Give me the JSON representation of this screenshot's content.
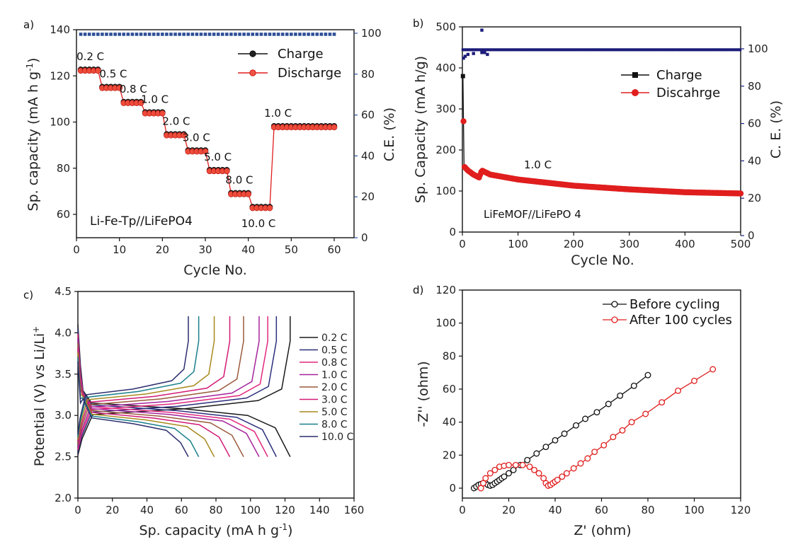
{
  "chart_data": [
    {
      "panel": "a)",
      "type": "line",
      "xlabel": "Cycle No.",
      "ylabel": "Sp. capacity (mA  h g-1)",
      "y2label": "C.E. (%)",
      "xlim": [
        0,
        65
      ],
      "ylim": [
        55,
        140
      ],
      "y2lim": [
        0,
        102
      ],
      "xticks": [
        "0",
        "10",
        "20",
        "30",
        "40",
        "50",
        "60"
      ],
      "yticks": [
        "60",
        "80",
        "100",
        "120",
        "140"
      ],
      "y2ticks": [
        "0",
        "20",
        "40",
        "60",
        "80",
        "100"
      ],
      "y2_color": "#2e4f97",
      "legend": [
        {
          "label": "Charge",
          "color": "#111111"
        },
        {
          "label": "Discharge",
          "color": "#e01e1e"
        }
      ],
      "sample_label": "Li-Fe-Tp//LiFePO4",
      "rate_segments": [
        {
          "rate": "0.2 C",
          "start": 1,
          "end": 5,
          "capacity": 122.5
        },
        {
          "rate": "0.5 C",
          "start": 6,
          "end": 10,
          "capacity": 115
        },
        {
          "rate": "0.8 C",
          "start": 11,
          "end": 15,
          "capacity": 108.5
        },
        {
          "rate": "1.0 C",
          "start": 16,
          "end": 20,
          "capacity": 104
        },
        {
          "rate": "2.0 C",
          "start": 21,
          "end": 25,
          "capacity": 94.5
        },
        {
          "rate": "3.0 C",
          "start": 26,
          "end": 30,
          "capacity": 87.5
        },
        {
          "rate": "5.0 C",
          "start": 31,
          "end": 35,
          "capacity": 79
        },
        {
          "rate": "8.0 C",
          "start": 36,
          "end": 40,
          "capacity": 69
        },
        {
          "rate": "10.0 C",
          "start": 41,
          "end": 45,
          "capacity": 63
        },
        {
          "rate": "1.0 C",
          "start": 46,
          "end": 60,
          "capacity": 98
        }
      ],
      "ce": {
        "cycles": [
          1,
          60
        ],
        "value": 99.5
      }
    },
    {
      "panel": "b)",
      "type": "line",
      "xlabel": "Cycle No.",
      "ylabel": "Sp. Capacity (mA h/g)",
      "y2label": "C. E. (%)",
      "xlim": [
        0,
        500
      ],
      "ylim": [
        0,
        500
      ],
      "y2lim": [
        0,
        110
      ],
      "xticks": [
        "0",
        "100",
        "200",
        "300",
        "400",
        "500"
      ],
      "yticks": [
        "0",
        "100",
        "200",
        "300",
        "400",
        "500"
      ],
      "y2ticks": [
        "0",
        "20",
        "40",
        "60",
        "80",
        "100"
      ],
      "y2_color": "#1c1c7a",
      "legend": [
        {
          "label": "Charge",
          "color": "#111111"
        },
        {
          "label": "Discahrge",
          "color": "#e01e1e"
        }
      ],
      "rate_label": "1.0 C",
      "sample_label": "LiFeMOF//LiFePO 4",
      "capacity_points": [
        [
          1,
          380
        ],
        [
          3,
          160
        ],
        [
          10,
          150
        ],
        [
          20,
          140
        ],
        [
          30,
          133
        ],
        [
          35,
          150
        ],
        [
          50,
          140
        ],
        [
          100,
          128
        ],
        [
          200,
          113
        ],
        [
          300,
          104
        ],
        [
          400,
          97
        ],
        [
          500,
          94
        ]
      ],
      "ce": {
        "value": 99.5,
        "early_points": [
          [
            2,
            95
          ],
          [
            5,
            96
          ],
          [
            10,
            97
          ],
          [
            20,
            97.5
          ],
          [
            35,
            98
          ],
          [
            40,
            98
          ],
          [
            35,
            110
          ],
          [
            45,
            97
          ]
        ]
      }
    },
    {
      "panel": "c)",
      "type": "line",
      "xlabel": "Sp. capacity (mA h g-1)",
      "ylabel": "Potential (V) vs Li/Li+",
      "xlim": [
        0,
        160
      ],
      "ylim": [
        2.0,
        4.5
      ],
      "xticks": [
        "0",
        "20",
        "40",
        "60",
        "80",
        "100",
        "120",
        "140",
        "160"
      ],
      "yticks": [
        "2.0",
        "2.5",
        "3.0",
        "3.5",
        "4.0",
        "4.5"
      ],
      "series": [
        {
          "name": "0.2 C",
          "color": "#1a1a1a",
          "capacity": 123
        },
        {
          "name": "0.5 C",
          "color": "#2b2f7c",
          "capacity": 115
        },
        {
          "name": "0.8 C",
          "color": "#e2277e",
          "capacity": 110
        },
        {
          "name": "1.0 C",
          "color": "#a5239c",
          "capacity": 105
        },
        {
          "name": "2.0 C",
          "color": "#9a5a3c",
          "capacity": 96
        },
        {
          "name": "3.0 C",
          "color": "#d11a74",
          "capacity": 88
        },
        {
          "name": "5.0 C",
          "color": "#a8891e",
          "capacity": 79
        },
        {
          "name": "8.0 C",
          "color": "#197f8a",
          "capacity": 70
        },
        {
          "name": "10.0 C",
          "color": "#2c2e6e",
          "capacity": 64
        }
      ]
    },
    {
      "panel": "d)",
      "type": "scatter",
      "xlabel": "Z' (ohm)",
      "ylabel": "-Z'' (ohm)",
      "xlim": [
        0,
        120
      ],
      "ylim": [
        -5,
        120
      ],
      "xticks": [
        "0",
        "20",
        "40",
        "60",
        "80",
        "100",
        "120"
      ],
      "yticks": [
        "0",
        "20",
        "40",
        "60",
        "80",
        "100",
        "120"
      ],
      "series": [
        {
          "name": "Before cycling",
          "color": "#111111",
          "points": [
            [
              5,
              0
            ],
            [
              6,
              1
            ],
            [
              7,
              2
            ],
            [
              8,
              2.5
            ],
            [
              9,
              3
            ],
            [
              10,
              3
            ],
            [
              11,
              2
            ],
            [
              12,
              1.5
            ],
            [
              13,
              2
            ],
            [
              14,
              3
            ],
            [
              15,
              4
            ],
            [
              16,
              5
            ],
            [
              17,
              6
            ],
            [
              18,
              7
            ],
            [
              20,
              9
            ],
            [
              22,
              11
            ],
            [
              25,
              14
            ],
            [
              28,
              17
            ],
            [
              32,
              21
            ],
            [
              36,
              25
            ],
            [
              40,
              29
            ],
            [
              44,
              33
            ],
            [
              49,
              38
            ],
            [
              53,
              42
            ],
            [
              58,
              46
            ],
            [
              63,
              51
            ],
            [
              68,
              56
            ],
            [
              74,
              62
            ],
            [
              80,
              68.5
            ]
          ]
        },
        {
          "name": "After 100 cycles",
          "color": "#e01e1e",
          "points": [
            [
              8,
              0
            ],
            [
              9,
              3
            ],
            [
              10,
              6
            ],
            [
              12,
              9
            ],
            [
              14,
              11
            ],
            [
              16,
              13
            ],
            [
              18,
              13.5
            ],
            [
              20,
              14
            ],
            [
              23,
              14
            ],
            [
              26,
              14
            ],
            [
              29,
              13
            ],
            [
              31,
              11
            ],
            [
              33,
              9
            ],
            [
              35,
              6
            ],
            [
              36,
              3
            ],
            [
              37,
              1.5
            ],
            [
              38,
              2
            ],
            [
              39,
              3
            ],
            [
              40,
              4
            ],
            [
              41,
              5
            ],
            [
              43,
              7
            ],
            [
              45,
              9
            ],
            [
              48,
              12
            ],
            [
              51,
              15
            ],
            [
              54,
              18
            ],
            [
              57,
              22
            ],
            [
              61,
              26
            ],
            [
              65,
              31
            ],
            [
              69,
              35
            ],
            [
              73,
              40
            ],
            [
              79,
              45
            ],
            [
              86,
              52
            ],
            [
              93,
              59
            ],
            [
              100,
              65
            ],
            [
              108,
              72
            ]
          ]
        }
      ]
    }
  ]
}
